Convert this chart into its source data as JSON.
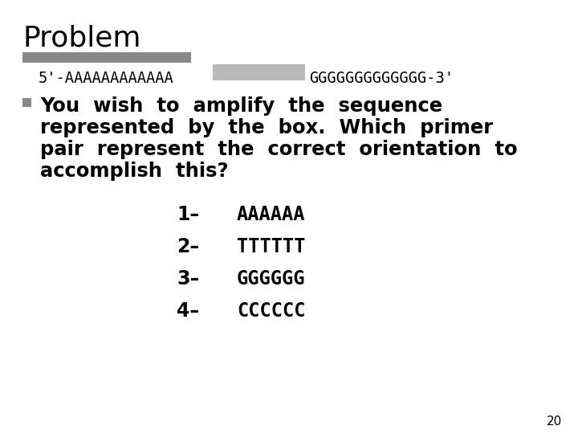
{
  "title": "Problem",
  "title_fontsize": 26,
  "title_weight": "normal",
  "bg_color": "#ffffff",
  "divider_color": "#888888",
  "seq_left": "5'-AAAAAAAAAAAA",
  "seq_right": "GGGGGGGGGGGGG-3'",
  "seq_fontsize": 13.5,
  "box_color": "#b8b8b8",
  "bullet_color": "#888888",
  "body_lines": [
    "You  wish  to  amplify  the  sequence",
    "represented  by  the  box.  Which  primer",
    "pair  represent  the  correct  orientation  to",
    "accomplish  this?"
  ],
  "body_fontsize": 17.5,
  "options": [
    {
      "num": "1–",
      "val": "AAAAAA"
    },
    {
      "num": "2–",
      "val": "TTTTTT"
    },
    {
      "num": "3–",
      "val": "GGGGGG"
    },
    {
      "num": "4–",
      "val": "CCCCCC"
    }
  ],
  "option_fontsize": 17,
  "page_number": "20",
  "page_num_fontsize": 11
}
